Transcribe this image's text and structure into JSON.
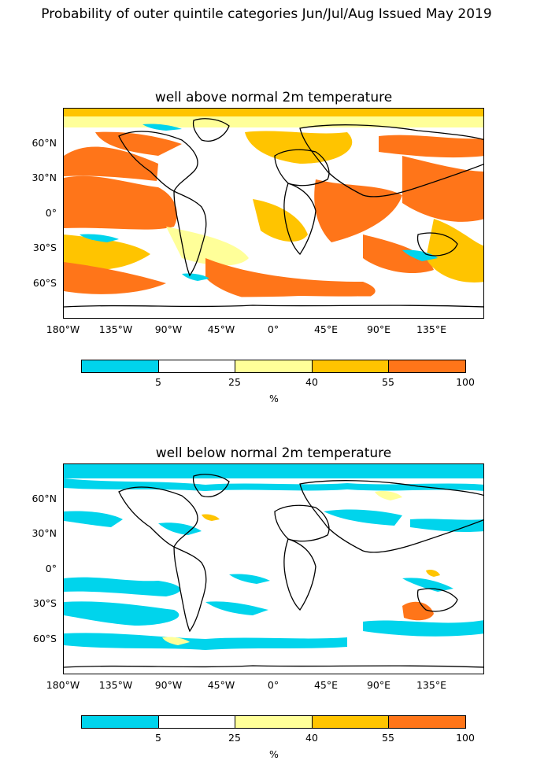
{
  "suptitle": "Probability of outer quintile categories Jun/Jul/Aug Issued May 2019",
  "panels": [
    {
      "title": "well above normal 2m temperature",
      "lat_labels": [
        "60°N",
        "30°N",
        "0°",
        "30°S",
        "60°S"
      ],
      "lon_labels": [
        "180°W",
        "135°W",
        "90°W",
        "45°W",
        "0°",
        "45°E",
        "90°E",
        "135°E"
      ]
    },
    {
      "title": "well below normal 2m temperature",
      "lat_labels": [
        "60°N",
        "30°N",
        "0°",
        "30°S",
        "60°S"
      ],
      "lon_labels": [
        "180°W",
        "135°W",
        "90°W",
        "45°W",
        "0°",
        "45°E",
        "90°E",
        "135°E"
      ]
    }
  ],
  "colorbar": {
    "colors": [
      "#00d4ec",
      "#ffffff",
      "#ffff99",
      "#ffc400",
      "#ff7519"
    ],
    "ticks": [
      "5",
      "25",
      "40",
      "55",
      "100"
    ],
    "unit": "%"
  }
}
